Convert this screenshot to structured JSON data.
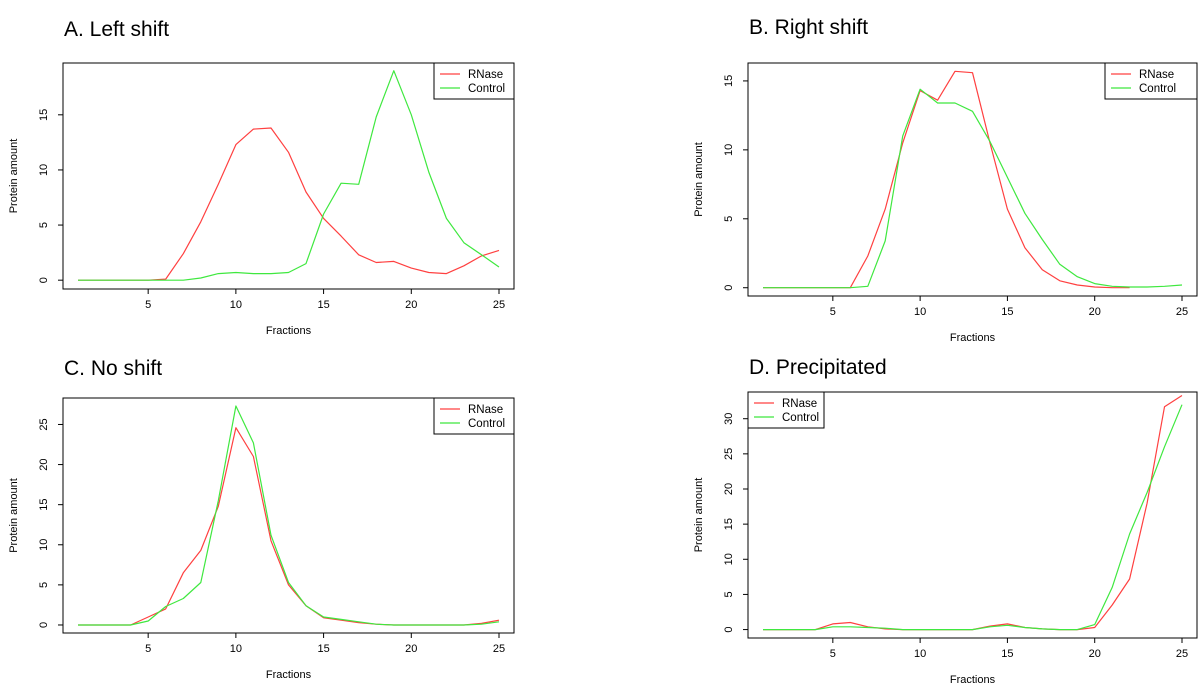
{
  "colors": {
    "rnase": "#ff4040",
    "control": "#3fe83f"
  },
  "chart_data": [
    {
      "id": "A",
      "type": "line",
      "title": "A. Left shift",
      "xlabel": "Fractions",
      "ylabel": "Protein amount",
      "xlim": [
        1,
        25
      ],
      "ylim": [
        -0.8,
        19.7
      ],
      "xticks": [
        5,
        10,
        15,
        20,
        25
      ],
      "yticks": [
        0,
        5,
        10,
        15
      ],
      "legend": {
        "position": "top-right",
        "entries": [
          "RNase",
          "Control"
        ]
      },
      "x": [
        1,
        2,
        3,
        4,
        5,
        6,
        7,
        8,
        9,
        10,
        11,
        12,
        13,
        14,
        15,
        16,
        17,
        18,
        19,
        20,
        21,
        22,
        23,
        24,
        25
      ],
      "series": [
        {
          "name": "RNase",
          "color": "#ff4040",
          "values": [
            0,
            0,
            0,
            0,
            0,
            0.1,
            2.4,
            5.3,
            8.7,
            12.3,
            13.7,
            13.8,
            11.6,
            8.0,
            5.6,
            4.0,
            2.3,
            1.6,
            1.7,
            1.1,
            0.7,
            0.6,
            1.3,
            2.2,
            2.7
          ]
        },
        {
          "name": "Control",
          "color": "#3fe83f",
          "values": [
            0,
            0,
            0,
            0,
            0,
            0,
            0,
            0.2,
            0.6,
            0.7,
            0.6,
            0.6,
            0.7,
            1.5,
            6.0,
            8.8,
            8.7,
            14.8,
            19.0,
            15.0,
            9.8,
            5.6,
            3.4,
            2.3,
            1.2
          ]
        }
      ]
    },
    {
      "id": "B",
      "type": "line",
      "title": "B. Right shift",
      "xlabel": "Fractions",
      "ylabel": "Protein amount",
      "xlim": [
        1,
        25
      ],
      "ylim": [
        -0.6,
        16.3
      ],
      "xticks": [
        5,
        10,
        15,
        20,
        25
      ],
      "yticks": [
        0,
        5,
        10,
        15
      ],
      "legend": {
        "position": "top-right",
        "entries": [
          "RNase",
          "Control"
        ]
      },
      "x": [
        1,
        2,
        3,
        4,
        5,
        6,
        7,
        8,
        9,
        10,
        11,
        12,
        13,
        14,
        15,
        16,
        17,
        18,
        19,
        20,
        21,
        22,
        23,
        24,
        25
      ],
      "series": [
        {
          "name": "RNase",
          "color": "#ff4040",
          "values": [
            0,
            0,
            0,
            0,
            0,
            0,
            2.3,
            5.7,
            10.5,
            14.3,
            13.6,
            15.7,
            15.6,
            10.5,
            5.7,
            2.9,
            1.3,
            0.5,
            0.2,
            0.05,
            0,
            0,
            null,
            null,
            null
          ]
        },
        {
          "name": "Control",
          "color": "#3fe83f",
          "values": [
            0,
            0,
            0,
            0,
            0,
            0,
            0.1,
            3.4,
            11.0,
            14.4,
            13.4,
            13.4,
            12.8,
            10.6,
            8.0,
            5.4,
            3.5,
            1.7,
            0.8,
            0.3,
            0.1,
            0.05,
            0.05,
            0.1,
            0.2
          ]
        }
      ]
    },
    {
      "id": "C",
      "type": "line",
      "title": "C. No shift",
      "xlabel": "Fractions",
      "ylabel": "Protein amount",
      "xlim": [
        1,
        25
      ],
      "ylim": [
        -1.0,
        28.3
      ],
      "xticks": [
        5,
        10,
        15,
        20,
        25
      ],
      "yticks": [
        0,
        5,
        10,
        15,
        20,
        25
      ],
      "legend": {
        "position": "top-right",
        "entries": [
          "RNase",
          "Control"
        ]
      },
      "x": [
        1,
        2,
        3,
        4,
        5,
        6,
        7,
        8,
        9,
        10,
        11,
        12,
        13,
        14,
        15,
        16,
        17,
        18,
        19,
        20,
        21,
        22,
        23,
        24,
        25
      ],
      "series": [
        {
          "name": "RNase",
          "color": "#ff4040",
          "values": [
            0,
            0,
            0,
            0,
            1.0,
            2.0,
            6.5,
            9.3,
            14.8,
            24.6,
            21.0,
            10.5,
            5.0,
            2.4,
            0.9,
            0.6,
            0.3,
            0.1,
            0,
            0,
            0,
            0,
            0,
            0.2,
            0.6
          ]
        },
        {
          "name": "Control",
          "color": "#3fe83f",
          "values": [
            0,
            0,
            0,
            0,
            0.5,
            2.3,
            3.3,
            5.3,
            15.5,
            27.3,
            22.7,
            11.2,
            5.3,
            2.4,
            1.0,
            0.7,
            0.4,
            0.1,
            0,
            0,
            0,
            0,
            0,
            0.1,
            0.4
          ]
        }
      ]
    },
    {
      "id": "D",
      "type": "line",
      "title": "D. Precipitated",
      "xlabel": "Fractions",
      "ylabel": "Protein amount",
      "xlim": [
        1,
        25
      ],
      "ylim": [
        -1.2,
        33.8
      ],
      "xticks": [
        5,
        10,
        15,
        20,
        25
      ],
      "yticks": [
        0,
        5,
        10,
        15,
        20,
        25,
        30
      ],
      "legend": {
        "position": "top-left",
        "entries": [
          "RNase",
          "Control"
        ]
      },
      "x": [
        1,
        2,
        3,
        4,
        5,
        6,
        7,
        8,
        9,
        10,
        11,
        12,
        13,
        14,
        15,
        16,
        17,
        18,
        19,
        20,
        21,
        22,
        23,
        24,
        25
      ],
      "series": [
        {
          "name": "RNase",
          "color": "#ff4040",
          "values": [
            0,
            0,
            0,
            0,
            0.8,
            1.0,
            0.4,
            0.1,
            0,
            0,
            0,
            0,
            0,
            0.5,
            0.8,
            0.3,
            0.1,
            0,
            0,
            0.3,
            3.5,
            7.2,
            18.0,
            31.7,
            33.3
          ]
        },
        {
          "name": "Control",
          "color": "#3fe83f",
          "values": [
            0,
            0,
            0,
            0,
            0.4,
            0.4,
            0.3,
            0.2,
            0,
            0,
            0,
            0,
            0,
            0.4,
            0.6,
            0.3,
            0.1,
            0,
            0,
            0.7,
            6.0,
            13.6,
            19.5,
            26.0,
            32.0
          ]
        }
      ]
    }
  ]
}
